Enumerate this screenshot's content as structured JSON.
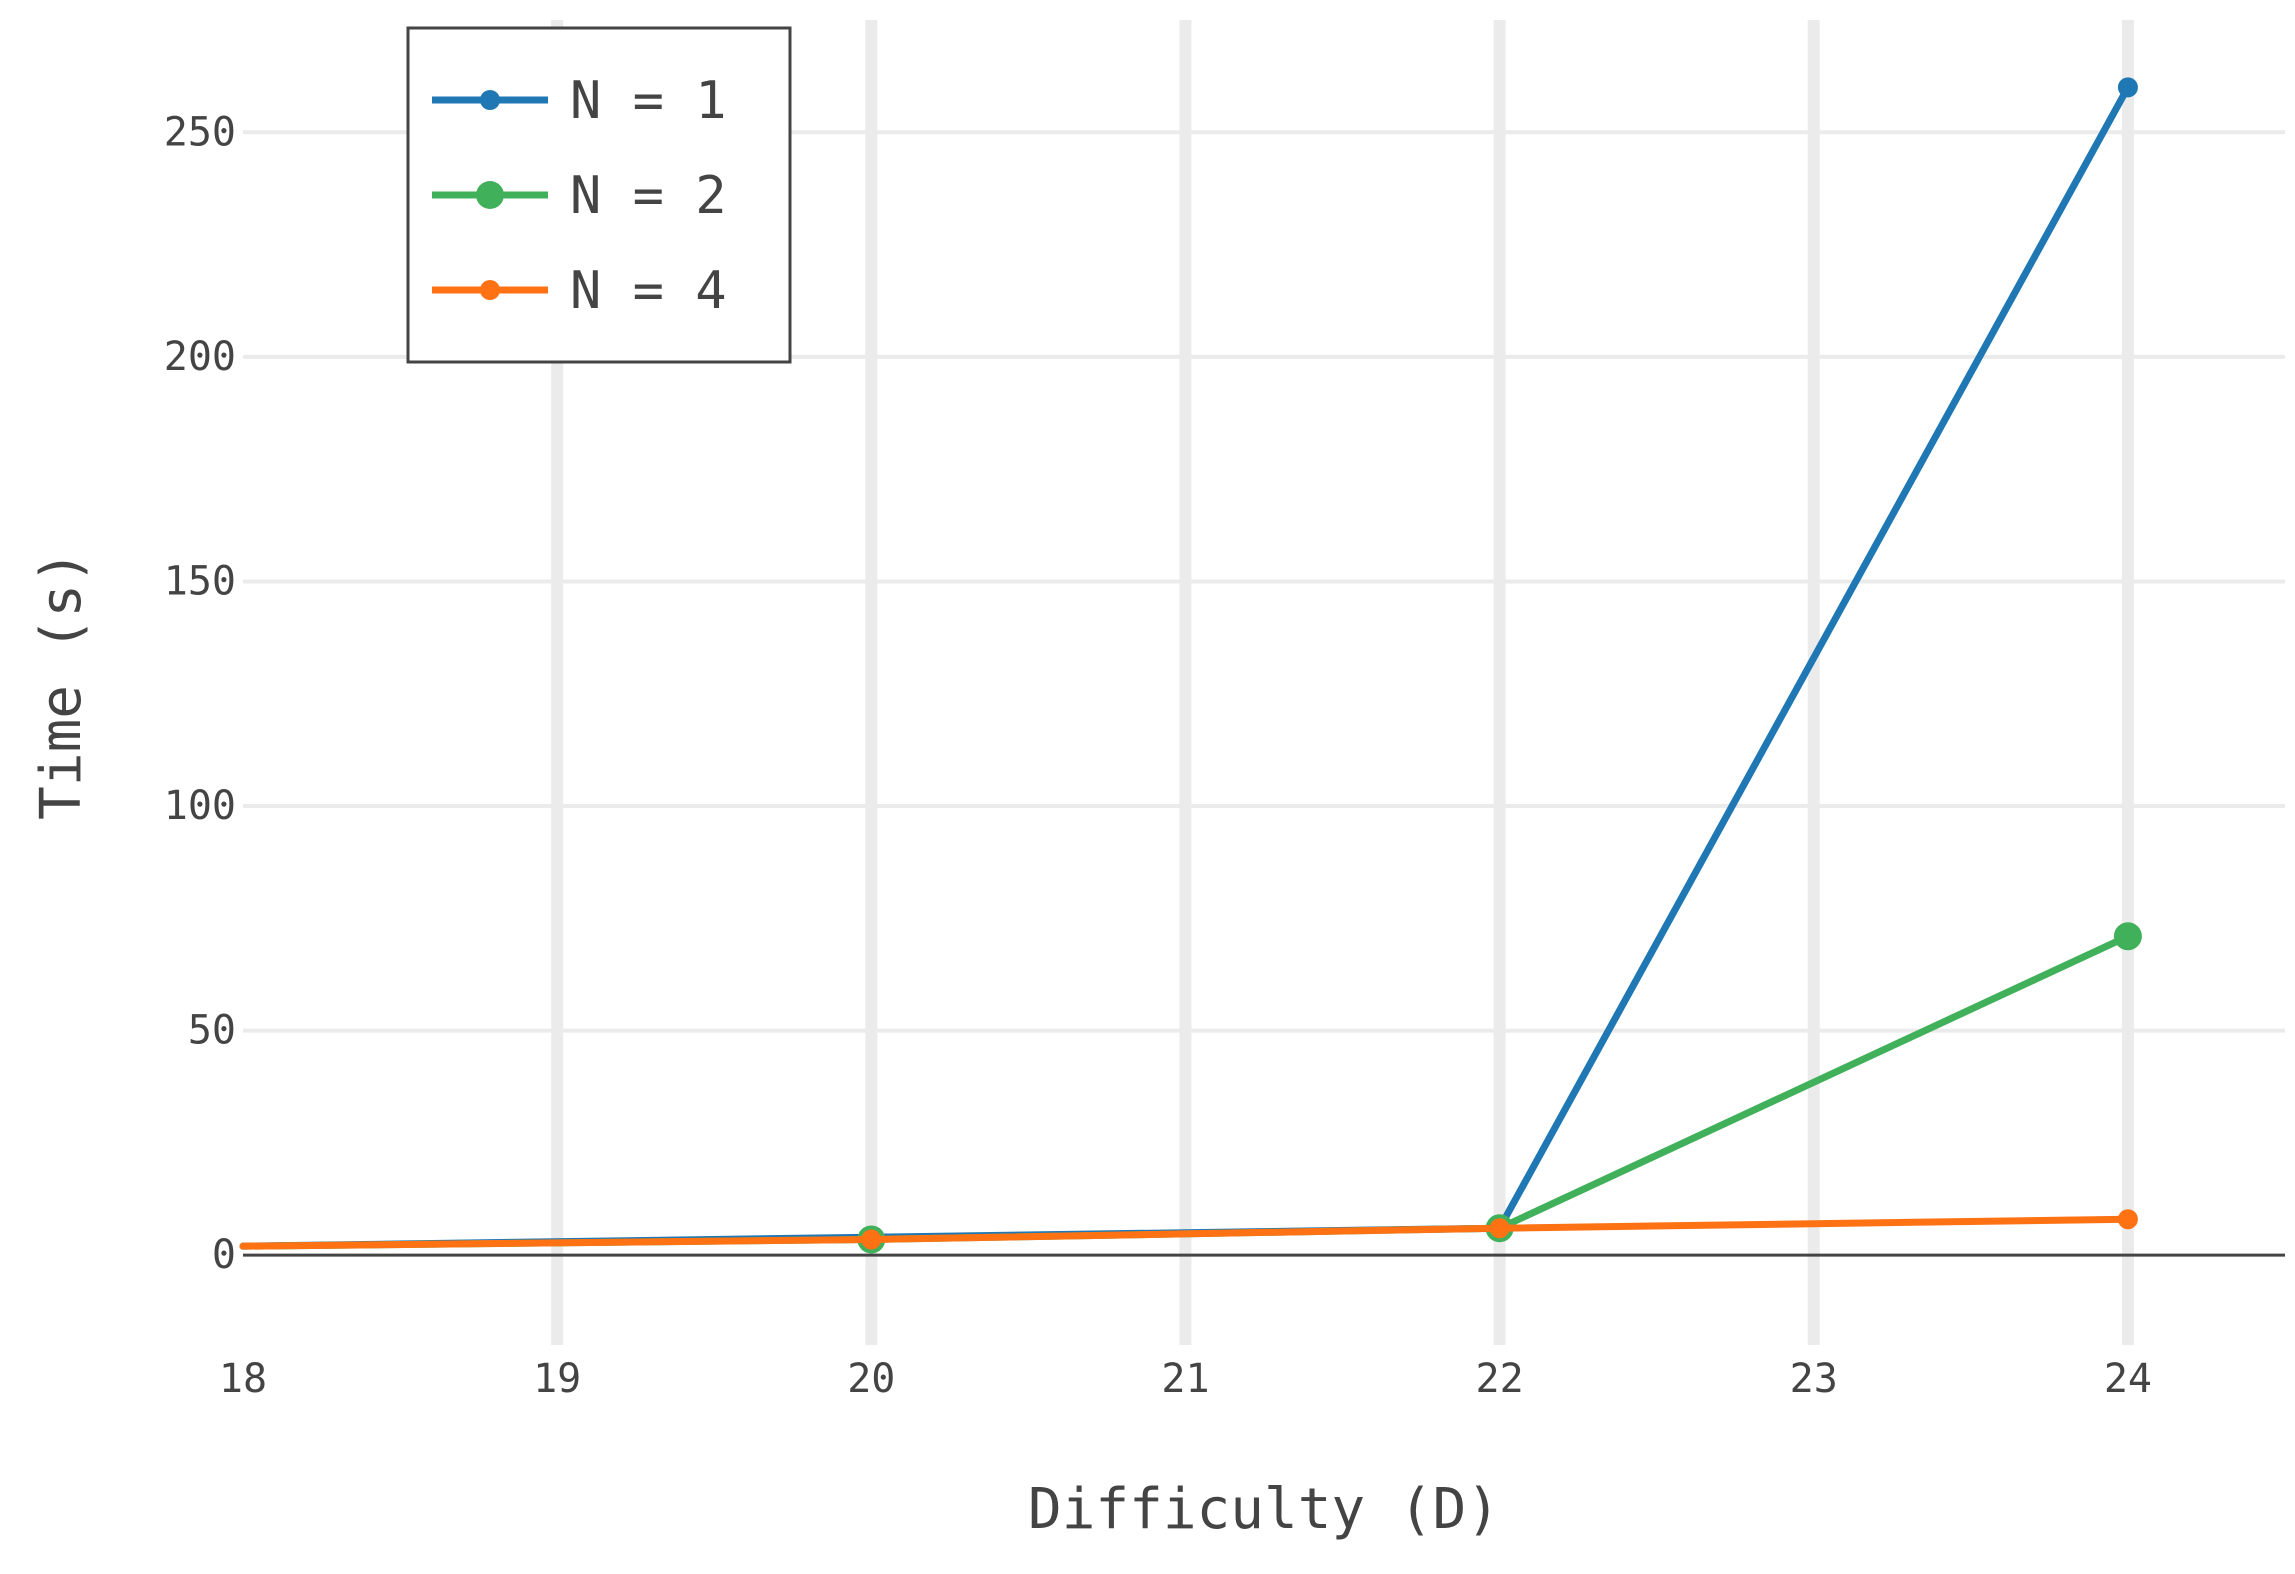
{
  "chart_data": {
    "type": "line",
    "xlabel": "Difficulty (D)",
    "ylabel": "Time (s)",
    "xlim": [
      18,
      24.5
    ],
    "ylim": [
      -20,
      275
    ],
    "x_ticks": [
      18,
      19,
      20,
      21,
      22,
      23,
      24
    ],
    "x_tick_labels": [
      "18",
      "19",
      "20",
      "21",
      "22",
      "23",
      "24"
    ],
    "y_ticks": [
      0,
      50,
      100,
      150,
      200,
      250
    ],
    "y_tick_labels": [
      "0",
      "50",
      "100",
      "150",
      "200",
      "250"
    ],
    "grid": true,
    "legend_position": "top-left",
    "series": [
      {
        "name": "N = 1",
        "color": "#1f77b4",
        "marker_size": "small",
        "x": [
          18,
          20,
          22,
          24
        ],
        "y": [
          2,
          4,
          6,
          260
        ]
      },
      {
        "name": "N = 2",
        "color": "#41b05a",
        "marker_size": "large",
        "x": [
          18,
          20,
          22,
          24
        ],
        "y": [
          2,
          3.5,
          6,
          71
        ]
      },
      {
        "name": "N = 4",
        "color": "#ff7214",
        "marker_size": "small",
        "x": [
          18,
          20,
          22,
          24
        ],
        "y": [
          2,
          3.5,
          6,
          8
        ]
      }
    ]
  }
}
